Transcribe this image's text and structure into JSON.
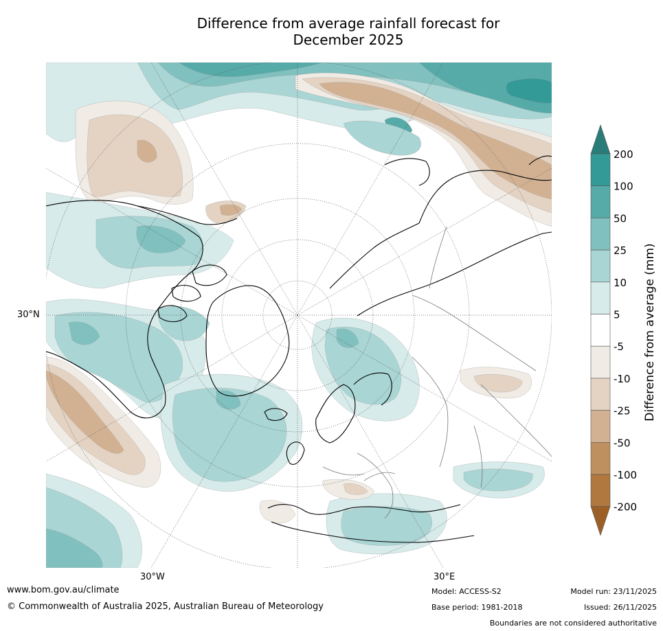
{
  "title": {
    "line1": "Difference from average rainfall forecast for",
    "line2": "December 2025"
  },
  "map": {
    "region": "Northern Hemisphere polar stereographic (Europe / Asia / North America)",
    "graticule": {
      "lat_label": "30°N",
      "lon_labels": [
        "30°W",
        "30°E"
      ]
    }
  },
  "colorbar": {
    "label": "Difference from average (mm)",
    "levels": [
      "200",
      "100",
      "50",
      "25",
      "10",
      "5",
      "-5",
      "-10",
      "-25",
      "-50",
      "-100",
      "-200"
    ],
    "colors": {
      "above_200": "#2a7c79",
      "100_200": "#339a97",
      "50_100": "#56aaa8",
      "25_50": "#80c0be",
      "10_25": "#a9d5d4",
      "5_10": "#d6ebea",
      "neutral": "#ffffff",
      "minus5_minus10": "#f0ebe4",
      "minus10_minus25": "#e4d3c3",
      "minus25_minus50": "#d2b193",
      "minus50_minus100": "#bf905f",
      "minus100_minus200": "#b0773f",
      "below_minus200": "#9c6026"
    }
  },
  "footer": {
    "website": "www.bom.gov.au/climate",
    "copyright": "© Commonwealth of Australia 2025, Australian Bureau of Meteorology",
    "model": "Model: ACCESS-S2",
    "base_period": "Base period: 1981-2018",
    "model_run": "Model run: 23/11/2025",
    "issued": "Issued: 26/11/2025",
    "disclaimer": "Boundaries are not considered authoritative"
  }
}
